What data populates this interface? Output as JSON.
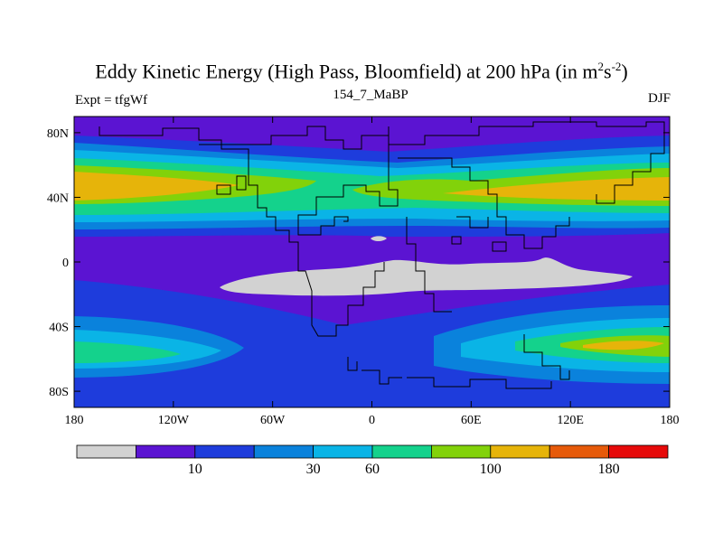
{
  "chart_data": {
    "type": "contour-map",
    "title": "Eddy Kinetic Energy (High Pass, Bloomfield) at 200 hPa (in m",
    "title_units_exp1": "2",
    "title_units_mid": "s",
    "title_units_exp2": "-2",
    "title_units_end": ")",
    "left_label": "Expt = tfgWf",
    "center_label": "154_7_MaBP",
    "right_label": "DJF",
    "x_ticks": [
      "180",
      "120W",
      "60W",
      "0",
      "60E",
      "120E",
      "180"
    ],
    "x_tick_values": [
      -180,
      -120,
      -60,
      0,
      60,
      120,
      180
    ],
    "y_ticks": [
      "80N",
      "40N",
      "0",
      "40S",
      "80S"
    ],
    "y_tick_values": [
      80,
      40,
      0,
      -40,
      -80
    ],
    "xlim": [
      -180,
      180
    ],
    "ylim": [
      -90,
      90
    ],
    "colorbar": {
      "colors": [
        "#d2d2d2",
        "#5b14d2",
        "#1e3cdc",
        "#0a82dc",
        "#0ab4e6",
        "#14d28c",
        "#82d20a",
        "#e6b40a",
        "#e65a0a",
        "#e60a0a"
      ],
      "labels": [
        "10",
        "30",
        "60",
        "100",
        "180"
      ],
      "label_after_box": [
        2,
        4,
        5,
        7,
        9
      ]
    }
  }
}
